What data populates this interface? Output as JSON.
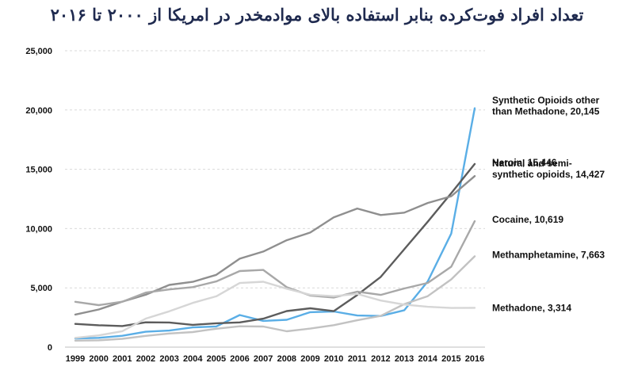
{
  "chart_data": {
    "type": "line",
    "title": "تعداد افراد فوت‌کرده بنابر استفاده بالای موادمخدر در امریکا از ۲۰۰۰ تا ۲۰۱۶",
    "xlabel": "",
    "ylabel": "",
    "x": [
      "1999",
      "2000",
      "2001",
      "2002",
      "2003",
      "2004",
      "2005",
      "2006",
      "2007",
      "2008",
      "2009",
      "2010",
      "2011",
      "2012",
      "2013",
      "2014",
      "2015",
      "2016"
    ],
    "ylim": [
      0,
      25000
    ],
    "yticks": [
      0,
      5000,
      10000,
      15000,
      20000,
      25000
    ],
    "ytick_labels": [
      "0",
      "5,000",
      "10,000",
      "15,000",
      "20,000",
      "25,000"
    ],
    "grid": "horizontal dashed",
    "series": [
      {
        "label_lines": [
          "Synthetic Opioids other",
          "than Methadone, 20,145"
        ],
        "color": "#5aaee6",
        "values": [
          730,
          782,
          957,
          1295,
          1400,
          1664,
          1742,
          2707,
          2213,
          2306,
          2946,
          3007,
          2666,
          2628,
          3105,
          5544,
          9580,
          20145
        ]
      },
      {
        "label_lines": [
          "Heroin, 15,446"
        ],
        "color": "#5c5c5c",
        "values": [
          1960,
          1842,
          1779,
          2089,
          2080,
          1878,
          2009,
          2088,
          2399,
          3041,
          3278,
          3036,
          4397,
          5925,
          8257,
          10574,
          12989,
          15446
        ]
      },
      {
        "label_lines": [
          "Natural and semi-",
          "synthetic opioids, 14,427"
        ],
        "color": "#8f8f8f",
        "values": [
          2749,
          3176,
          3840,
          4416,
          5249,
          5511,
          6098,
          7463,
          8064,
          9017,
          9669,
          10943,
          11693,
          11140,
          11346,
          12159,
          12727,
          14427
        ]
      },
      {
        "label_lines": [
          "Cocaine, 10,619"
        ],
        "color": "#a8a8a8",
        "values": [
          3822,
          3544,
          3833,
          4599,
          4864,
          5060,
          5541,
          6420,
          6512,
          5054,
          4350,
          4183,
          4681,
          4404,
          4944,
          5415,
          6784,
          10619
        ]
      },
      {
        "label_lines": [
          "Methamphetamine, 7,663"
        ],
        "color": "#c2c2c2",
        "values": [
          547,
          578,
          705,
          951,
          1152,
          1267,
          1551,
          1758,
          1740,
          1339,
          1564,
          1854,
          2266,
          2635,
          3627,
          4300,
          5716,
          7663
        ]
      },
      {
        "label_lines": [
          "Methadone, 3,314"
        ],
        "color": "#d6d6d6",
        "values": [
          784,
          988,
          1346,
          2409,
          3021,
          3728,
          4286,
          5406,
          5518,
          4924,
          4418,
          4300,
          4487,
          3932,
          3591,
          3400,
          3301,
          3314
        ]
      }
    ]
  }
}
